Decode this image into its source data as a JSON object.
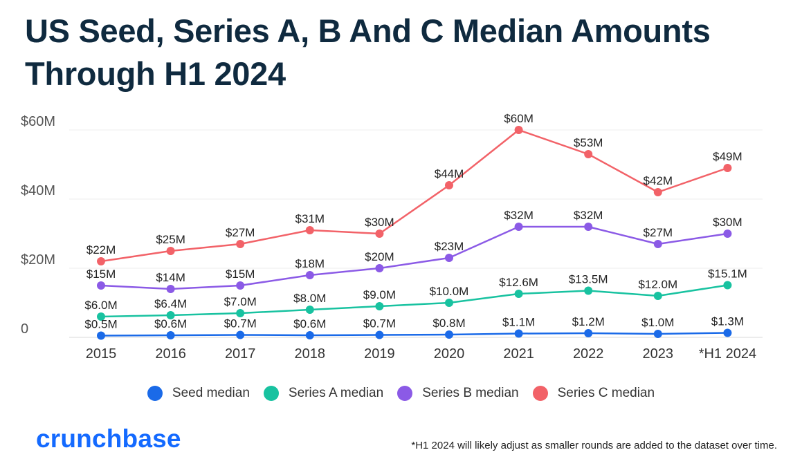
{
  "title": "US Seed, Series A, B And C Median Amounts Through H1 2024",
  "footnote": "*H1 2024 will likely adjust as smaller rounds are added to the dataset over time.",
  "logo_text": "crunchbase",
  "chart_data": {
    "type": "line",
    "title": "US Seed, Series A, B And C Median Amounts Through H1 2024",
    "categories": [
      "2015",
      "2016",
      "2017",
      "2018",
      "2019",
      "2020",
      "2021",
      "2022",
      "2023",
      "*H1 2024"
    ],
    "y_ticks": [
      {
        "value": 0,
        "label": "0"
      },
      {
        "value": 20,
        "label": "$20M"
      },
      {
        "value": 40,
        "label": "$40M"
      },
      {
        "value": 60,
        "label": "$60M"
      }
    ],
    "ylim": [
      0,
      60
    ],
    "grid": true,
    "legend_position": "bottom",
    "series": [
      {
        "name": "Seed median",
        "color": "#1a6ae8",
        "values": [
          0.5,
          0.6,
          0.7,
          0.6,
          0.7,
          0.8,
          1.1,
          1.2,
          1.0,
          1.3
        ],
        "labels": [
          "$0.5M",
          "$0.6M",
          "$0.7M",
          "$0.6M",
          "$0.7M",
          "$0.8M",
          "$1.1M",
          "$1.2M",
          "$1.0M",
          "$1.3M"
        ]
      },
      {
        "name": "Series A median",
        "color": "#18c2a0",
        "values": [
          6.0,
          6.4,
          7.0,
          8.0,
          9.0,
          10.0,
          12.6,
          13.5,
          12.0,
          15.1
        ],
        "labels": [
          "$6.0M",
          "$6.4M",
          "$7.0M",
          "$8.0M",
          "$9.0M",
          "$10.0M",
          "$12.6M",
          "$13.5M",
          "$12.0M",
          "$15.1M"
        ]
      },
      {
        "name": "Series B median",
        "color": "#8b5ae6",
        "values": [
          15,
          14,
          15,
          18,
          20,
          23,
          32,
          32,
          27,
          30
        ],
        "labels": [
          "$15M",
          "$14M",
          "$15M",
          "$18M",
          "$20M",
          "$23M",
          "$32M",
          "$32M",
          "$27M",
          "$30M"
        ]
      },
      {
        "name": "Series C median",
        "color": "#f26268",
        "values": [
          22,
          25,
          27,
          31,
          30,
          44,
          60,
          53,
          42,
          49
        ],
        "labels": [
          "$22M",
          "$25M",
          "$27M",
          "$31M",
          "$30M",
          "$44M",
          "$60M",
          "$53M",
          "$42M",
          "$49M"
        ]
      }
    ]
  }
}
